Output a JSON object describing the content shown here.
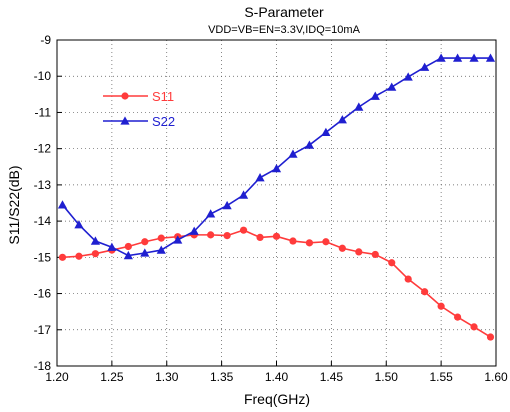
{
  "chart_data": {
    "type": "line",
    "title": "S-Parameter",
    "subtitle": "VDD=VB=EN=3.3V,IDQ=10mA",
    "xlabel": "Freq(GHz)",
    "ylabel": "S11/S22(dB)",
    "xlim": [
      1.2,
      1.6
    ],
    "ylim": [
      -18,
      -9
    ],
    "xticks": [
      "1.20",
      "1.25",
      "1.30",
      "1.35",
      "1.40",
      "1.45",
      "1.50",
      "1.55",
      "1.60"
    ],
    "yticks": [
      "-9",
      "-10",
      "-11",
      "-12",
      "-13",
      "-14",
      "-15",
      "-16",
      "-17",
      "-18"
    ],
    "grid": "dotted",
    "legend_position": "top-left",
    "x": [
      1.205,
      1.22,
      1.235,
      1.25,
      1.265,
      1.28,
      1.295,
      1.31,
      1.325,
      1.34,
      1.355,
      1.37,
      1.385,
      1.4,
      1.415,
      1.43,
      1.445,
      1.46,
      1.475,
      1.49,
      1.505,
      1.52,
      1.535,
      1.55,
      1.565,
      1.58,
      1.595
    ],
    "series": [
      {
        "name": "S11",
        "color": "#ff3b3b",
        "marker": "circle",
        "values": [
          -15.0,
          -14.97,
          -14.9,
          -14.8,
          -14.7,
          -14.57,
          -14.47,
          -14.43,
          -14.38,
          -14.38,
          -14.4,
          -14.25,
          -14.45,
          -14.42,
          -14.55,
          -14.6,
          -14.57,
          -14.75,
          -14.85,
          -14.92,
          -15.15,
          -15.6,
          -15.95,
          -16.35,
          -16.65,
          -16.92,
          -17.2
        ]
      },
      {
        "name": "S22",
        "color": "#1f1fd0",
        "marker": "triangle",
        "values": [
          -13.55,
          -14.1,
          -14.55,
          -14.72,
          -14.95,
          -14.88,
          -14.8,
          -14.52,
          -14.28,
          -13.8,
          -13.57,
          -13.28,
          -12.8,
          -12.55,
          -12.15,
          -11.9,
          -11.55,
          -11.2,
          -10.85,
          -10.55,
          -10.3,
          -10.02,
          -9.75,
          -9.5,
          -9.5,
          -9.5,
          -9.5
        ]
      }
    ]
  }
}
